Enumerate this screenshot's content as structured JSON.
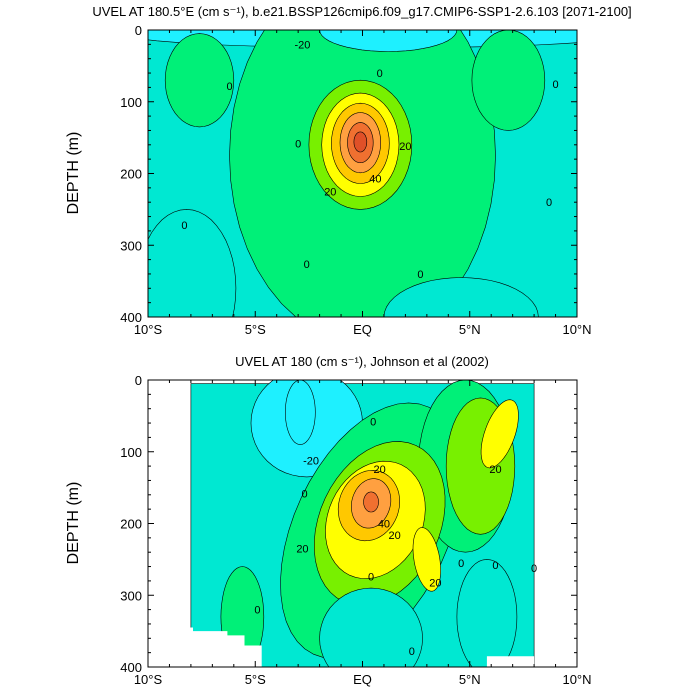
{
  "colors": {
    "level_fills": [
      "#1ef0ff",
      "#00e8d2",
      "#00f078",
      "#78f000",
      "#ffff00",
      "#ffc800",
      "#ffa040",
      "#f07030",
      "#e05028"
    ],
    "contour_line": "#000000"
  },
  "chart_data": [
    {
      "type": "contour",
      "title": "UVEL AT 180.5°E (cm s⁻¹), b.e21.BSSP126cmip6.f09_g17.CMIP6-SSP1-2.6.103 [2071-2100]",
      "xlabel": "",
      "ylabel": "DEPTH (m)",
      "xlim": [
        -10,
        10
      ],
      "ylim": [
        400,
        0
      ],
      "x_ticks": [
        -10,
        -5,
        0,
        5,
        10
      ],
      "x_tick_labels": [
        "10°S",
        "5°S",
        "EQ",
        "5°N",
        "10°N"
      ],
      "y_ticks": [
        0,
        100,
        200,
        300,
        400
      ],
      "y_tick_labels": [
        "0",
        "100",
        "200",
        "300",
        "400"
      ],
      "contour_interval": 10,
      "levels": [
        -20,
        -10,
        0,
        10,
        20,
        30,
        40,
        50,
        60
      ],
      "data_extent_x": [
        -10,
        10
      ],
      "data_extent_y": [
        0,
        400
      ],
      "features": [
        {
          "kind": "jet-core",
          "x": 0,
          "y": 155,
          "max": 65
        },
        {
          "kind": "surface-westward",
          "x": 1.5,
          "y": 0,
          "min": -25
        }
      ],
      "contour_labels": [
        {
          "text": "-20",
          "x": -2.8,
          "y": 20
        },
        {
          "text": "0",
          "x": 0.8,
          "y": 60
        },
        {
          "text": "0",
          "x": -6.2,
          "y": 78
        },
        {
          "text": "0",
          "x": 9.0,
          "y": 75
        },
        {
          "text": "0",
          "x": -3.0,
          "y": 158
        },
        {
          "text": "20",
          "x": 2.0,
          "y": 162
        },
        {
          "text": "40",
          "x": 0.6,
          "y": 207
        },
        {
          "text": "20",
          "x": -1.5,
          "y": 225
        },
        {
          "text": "0",
          "x": 8.7,
          "y": 240
        },
        {
          "text": "0",
          "x": -8.3,
          "y": 272
        },
        {
          "text": "0",
          "x": -2.6,
          "y": 326
        },
        {
          "text": "0",
          "x": 2.7,
          "y": 340
        }
      ]
    },
    {
      "type": "contour",
      "title": "UVEL AT 180 (cm s⁻¹), Johnson et al (2002)",
      "xlabel": "",
      "ylabel": "DEPTH (m)",
      "xlim": [
        -10,
        10
      ],
      "ylim": [
        400,
        0
      ],
      "x_ticks": [
        -10,
        -5,
        0,
        5,
        10
      ],
      "x_tick_labels": [
        "10°S",
        "5°S",
        "EQ",
        "5°N",
        "10°N"
      ],
      "y_ticks": [
        0,
        100,
        200,
        300,
        400
      ],
      "y_tick_labels": [
        "0",
        "100",
        "200",
        "300",
        "400"
      ],
      "contour_interval": 10,
      "levels": [
        -20,
        -10,
        0,
        10,
        20,
        30,
        40,
        50,
        60
      ],
      "data_extent_x": [
        -8,
        8
      ],
      "data_extent_y": [
        5,
        400
      ],
      "features": [
        {
          "kind": "jet-core",
          "x": 0.4,
          "y": 170,
          "max": 58
        },
        {
          "kind": "surface-westward",
          "x": -2.5,
          "y": 60,
          "min": -25
        },
        {
          "kind": "deep-westward",
          "x": 0,
          "y": 360,
          "min": -15
        }
      ],
      "contour_labels": [
        {
          "text": "0",
          "x": 0.5,
          "y": 58
        },
        {
          "text": "-20",
          "x": -2.4,
          "y": 112
        },
        {
          "text": "20",
          "x": 0.8,
          "y": 124
        },
        {
          "text": "20",
          "x": 6.2,
          "y": 124
        },
        {
          "text": "0",
          "x": -2.7,
          "y": 158
        },
        {
          "text": "40",
          "x": 1.0,
          "y": 200
        },
        {
          "text": "20",
          "x": 1.5,
          "y": 216
        },
        {
          "text": "20",
          "x": -2.8,
          "y": 235
        },
        {
          "text": "0",
          "x": 4.6,
          "y": 255
        },
        {
          "text": "0",
          "x": 6.2,
          "y": 258
        },
        {
          "text": "0",
          "x": 8.0,
          "y": 262
        },
        {
          "text": "0",
          "x": 0.4,
          "y": 274
        },
        {
          "text": "20",
          "x": 3.4,
          "y": 282
        },
        {
          "text": "0",
          "x": -4.9,
          "y": 320
        },
        {
          "text": "0",
          "x": 2.3,
          "y": 378
        }
      ]
    }
  ]
}
